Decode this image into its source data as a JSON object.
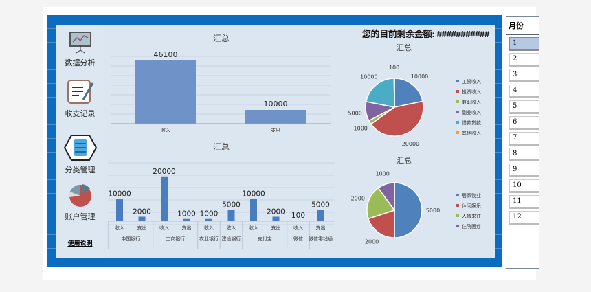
{
  "sidebar": {
    "items": [
      {
        "label": "数据分析",
        "icon": "presentation-chart-icon"
      },
      {
        "label": "收支记录",
        "icon": "notepad-pen-icon"
      },
      {
        "label": "分类管理",
        "icon": "list-hexagon-icon"
      },
      {
        "label": "账户管理",
        "icon": "pie-chart-icon"
      }
    ],
    "help": "使用说明"
  },
  "balance": "您的目前剩余金额: ###########",
  "colors": {
    "bar": "#6f93c9",
    "bar2": "#4a7cc0",
    "frame": "#0b6cc0",
    "panel": "#dce6f0"
  },
  "chart_data": [
    {
      "type": "bar",
      "title": "汇总",
      "categories": [
        "收入",
        "支出"
      ],
      "values": [
        46100,
        10000
      ]
    },
    {
      "type": "bar",
      "title": "汇总",
      "categories": [
        [
          "收入",
          "中国银行"
        ],
        [
          "支出",
          "中国银行"
        ],
        [
          "收入",
          "工商银行"
        ],
        [
          "支出",
          "工商银行"
        ],
        [
          "收入",
          "农业银行"
        ],
        [
          "收入",
          "建设银行"
        ],
        [
          "收入",
          "支付宝"
        ],
        [
          "支出",
          "支付宝"
        ],
        [
          "收入",
          "微信"
        ],
        [
          "支出",
          "微信零钱通"
        ]
      ],
      "groups": [
        "中国银行",
        "工商银行",
        "农业银行",
        "建设银行",
        "支付宝",
        "微信",
        "微信零钱通"
      ],
      "values": [
        10000,
        2000,
        20000,
        1000,
        1000,
        5000,
        10000,
        2000,
        100,
        5000
      ]
    },
    {
      "type": "pie",
      "title": "汇总",
      "labels": [
        "工资收入",
        "投资收入",
        "兼职收入",
        "副业收入",
        "借款贷款",
        "其他收入"
      ],
      "values": [
        10000,
        20000,
        1000,
        5000,
        10000,
        100
      ],
      "colors": [
        "#4f81bd",
        "#c0504d",
        "#9bbb59",
        "#8064a2",
        "#4bacc6",
        "#f79646"
      ],
      "legend": "right"
    },
    {
      "type": "pie",
      "title": "汇总",
      "labels": [
        "居家物业",
        "休闲娱乐",
        "人情来往",
        "住院医疗"
      ],
      "values": [
        5000,
        2000,
        2000,
        1000
      ],
      "colors": [
        "#4f81bd",
        "#c0504d",
        "#9bbb59",
        "#8064a2"
      ],
      "legend": "right"
    }
  ],
  "months": {
    "header": "月份",
    "items": [
      "1",
      "2",
      "3",
      "4",
      "5",
      "6",
      "7",
      "8",
      "9",
      "10",
      "11",
      "12"
    ],
    "selected": "1"
  }
}
